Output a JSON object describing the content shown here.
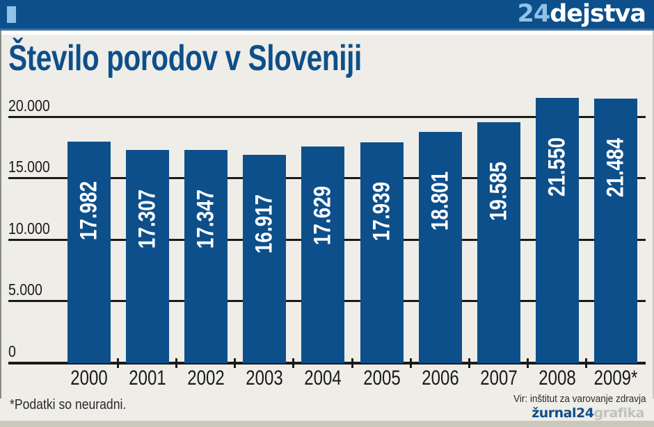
{
  "header": {
    "brand_number": "24",
    "brand_word": "dejstva"
  },
  "title": "Število porodov v Sloveniji",
  "footnote": "*Podatki so neuradni.",
  "source": "Vir: inštitut za varovanje zdravja",
  "credit": {
    "part1": "žurnal24",
    "part2": "grafika"
  },
  "colors": {
    "bar": "#0d4f8b",
    "accent_light": "#8fc3e8",
    "background": "#efede7"
  },
  "y_ticks": [
    "20.000",
    "15.000",
    "10.000",
    "5.000",
    "0"
  ],
  "chart_data": {
    "type": "bar",
    "title": "Število porodov v Sloveniji",
    "xlabel": "",
    "ylabel": "",
    "categories": [
      "2000",
      "2001",
      "2002",
      "2003",
      "2004",
      "2005",
      "2006",
      "2007",
      "2008",
      "2009*"
    ],
    "values": [
      17982,
      17307,
      17347,
      16917,
      17629,
      17939,
      18801,
      19585,
      21550,
      21484
    ],
    "value_labels": [
      "17.982",
      "17.307",
      "17.347",
      "16.917",
      "17.629",
      "17.939",
      "18.801",
      "19.585",
      "21.550",
      "21.484"
    ],
    "ylim": [
      0,
      20000
    ],
    "yticks": [
      0,
      5000,
      10000,
      15000,
      20000
    ],
    "grid": true,
    "legend": null,
    "annotations": [
      "*Podatki so neuradni.",
      "Vir: inštitut za varovanje zdravja"
    ]
  }
}
